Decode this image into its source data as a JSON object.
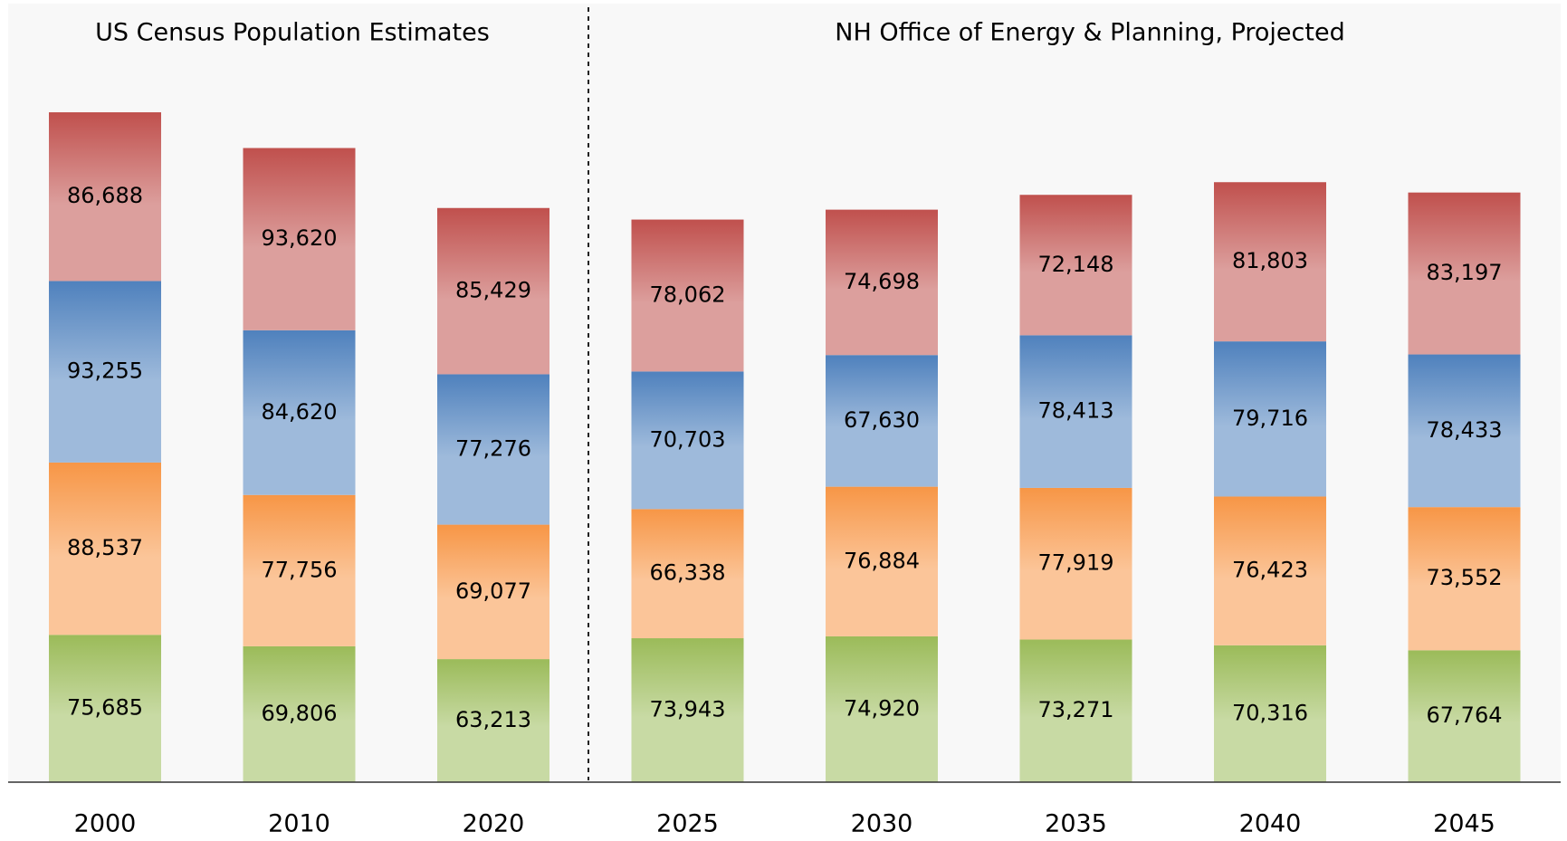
{
  "chart_data": {
    "type": "bar",
    "stacked": true,
    "annotations": [
      "US Census Population Estimates",
      "NH Office of Energy & Planning, Projected"
    ],
    "categories": [
      "2000",
      "2010",
      "2020",
      "2025",
      "2030",
      "2035",
      "2040",
      "2045"
    ],
    "ylim": [
      0,
      400000
    ],
    "series": [
      {
        "color": "#9bbb59",
        "values": [
          75685,
          69806,
          63213,
          73943,
          74920,
          73271,
          70316,
          67764
        ],
        "value_labels": [
          "75,685",
          "69,806",
          "63,213",
          "73,943",
          "74,920",
          "73,271",
          "70,316",
          "67,764"
        ]
      },
      {
        "color": "#f79646",
        "values": [
          88537,
          77756,
          69077,
          66338,
          76884,
          77919,
          76423,
          73552
        ],
        "value_labels": [
          "88,537",
          "77,756",
          "69,077",
          "66,338",
          "76,884",
          "77,919",
          "76,423",
          "73,552"
        ]
      },
      {
        "color": "#4f81bd",
        "values": [
          93255,
          84620,
          77276,
          70703,
          67630,
          78413,
          79716,
          78433
        ],
        "value_labels": [
          "93,255",
          "84,620",
          "77,276",
          "70,703",
          "67,630",
          "78,413",
          "79,716",
          "78,433"
        ]
      },
      {
        "color": "#c0504d",
        "values": [
          86688,
          93620,
          85429,
          78062,
          74698,
          72148,
          81803,
          83197
        ],
        "value_labels": [
          "86,688",
          "93,620",
          "85,429",
          "78,062",
          "74,698",
          "72,148",
          "81,803",
          "83,197"
        ]
      }
    ]
  }
}
